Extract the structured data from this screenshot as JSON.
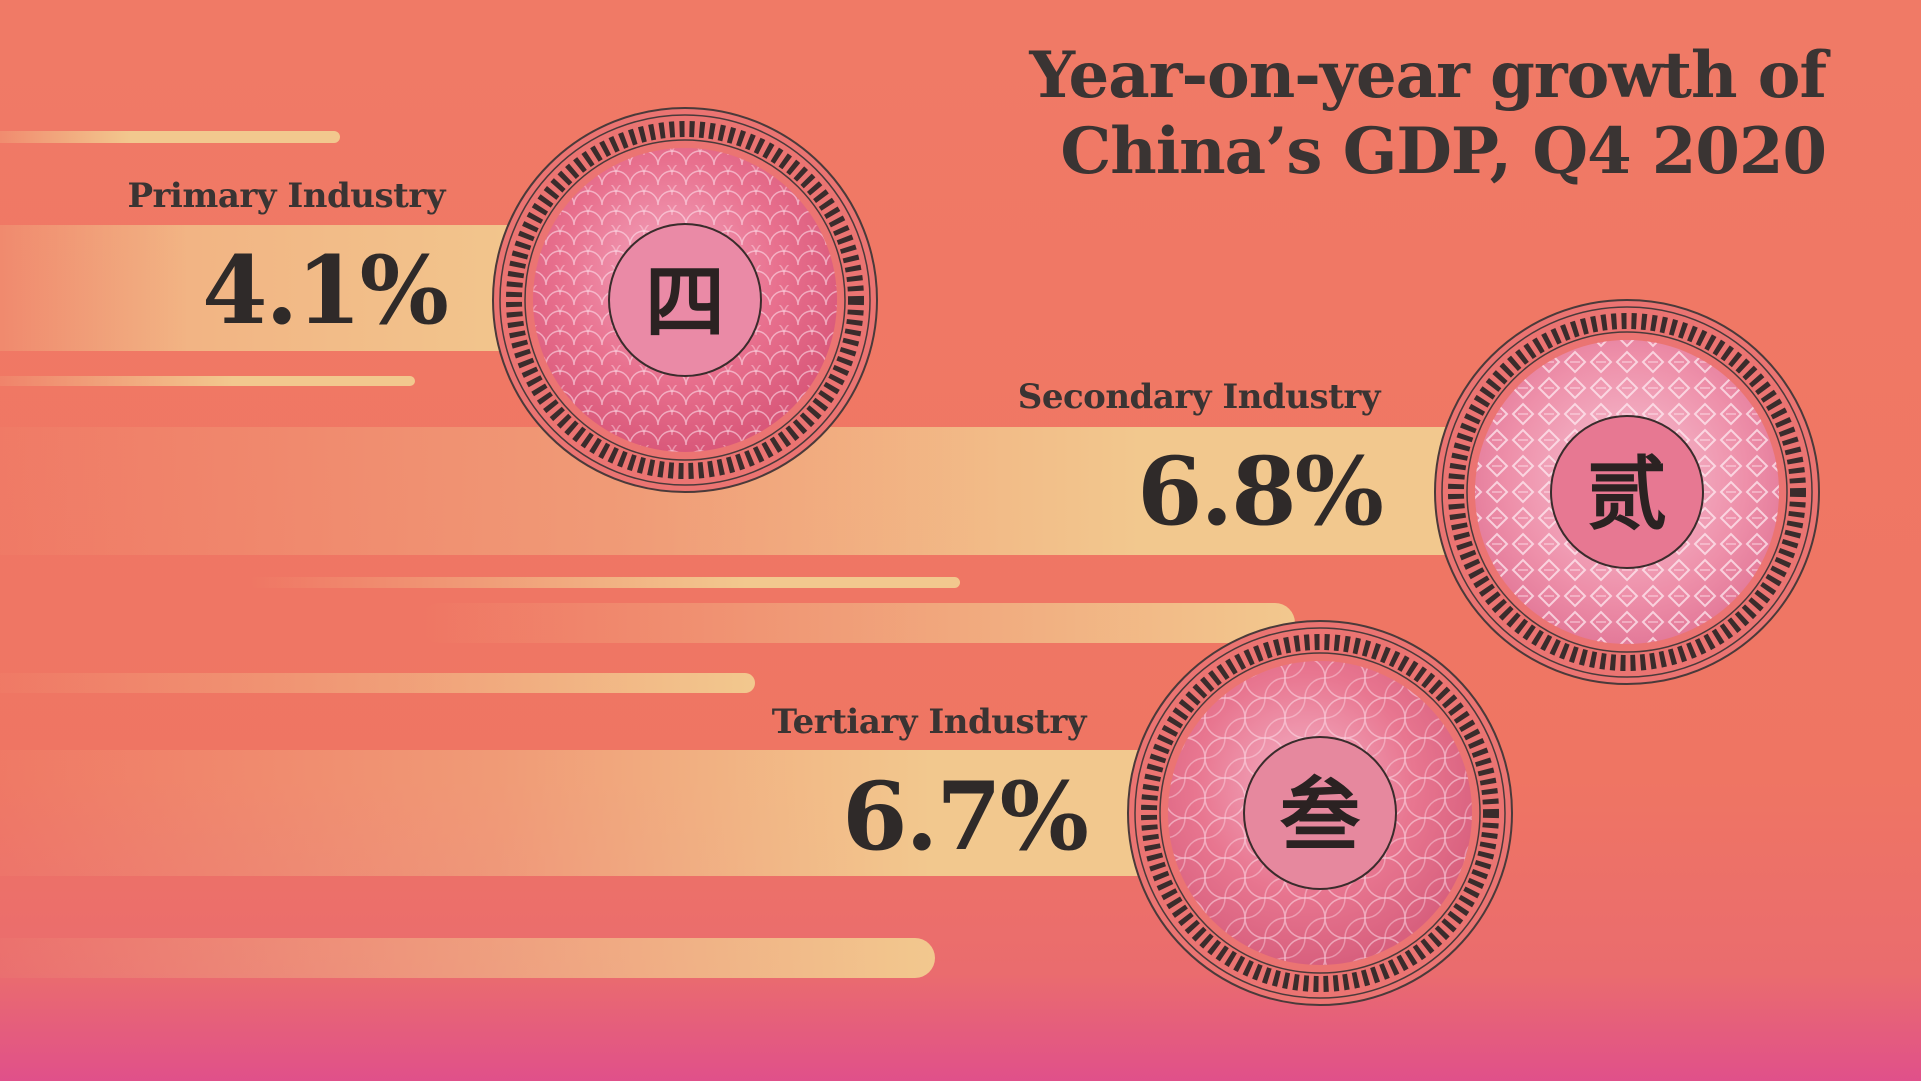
{
  "title": {
    "line1": "Year-on-year growth of",
    "line2": "China’s GDP, Q4 2020"
  },
  "industries": [
    {
      "label": "Primary Industry",
      "value": "4.1%",
      "glyph": "四",
      "emblem": "scales"
    },
    {
      "label": "Secondary Industry",
      "value": "6.8%",
      "glyph": "贰",
      "emblem": "weave"
    },
    {
      "label": "Tertiary Industry",
      "value": "6.7%",
      "glyph": "叁",
      "emblem": "petals"
    }
  ],
  "colors": {
    "background": "#f07a66",
    "streak": "#f2c88e",
    "text": "#333333",
    "medal_ring": "#e8707a",
    "medal_center": "#f08ca8"
  }
}
